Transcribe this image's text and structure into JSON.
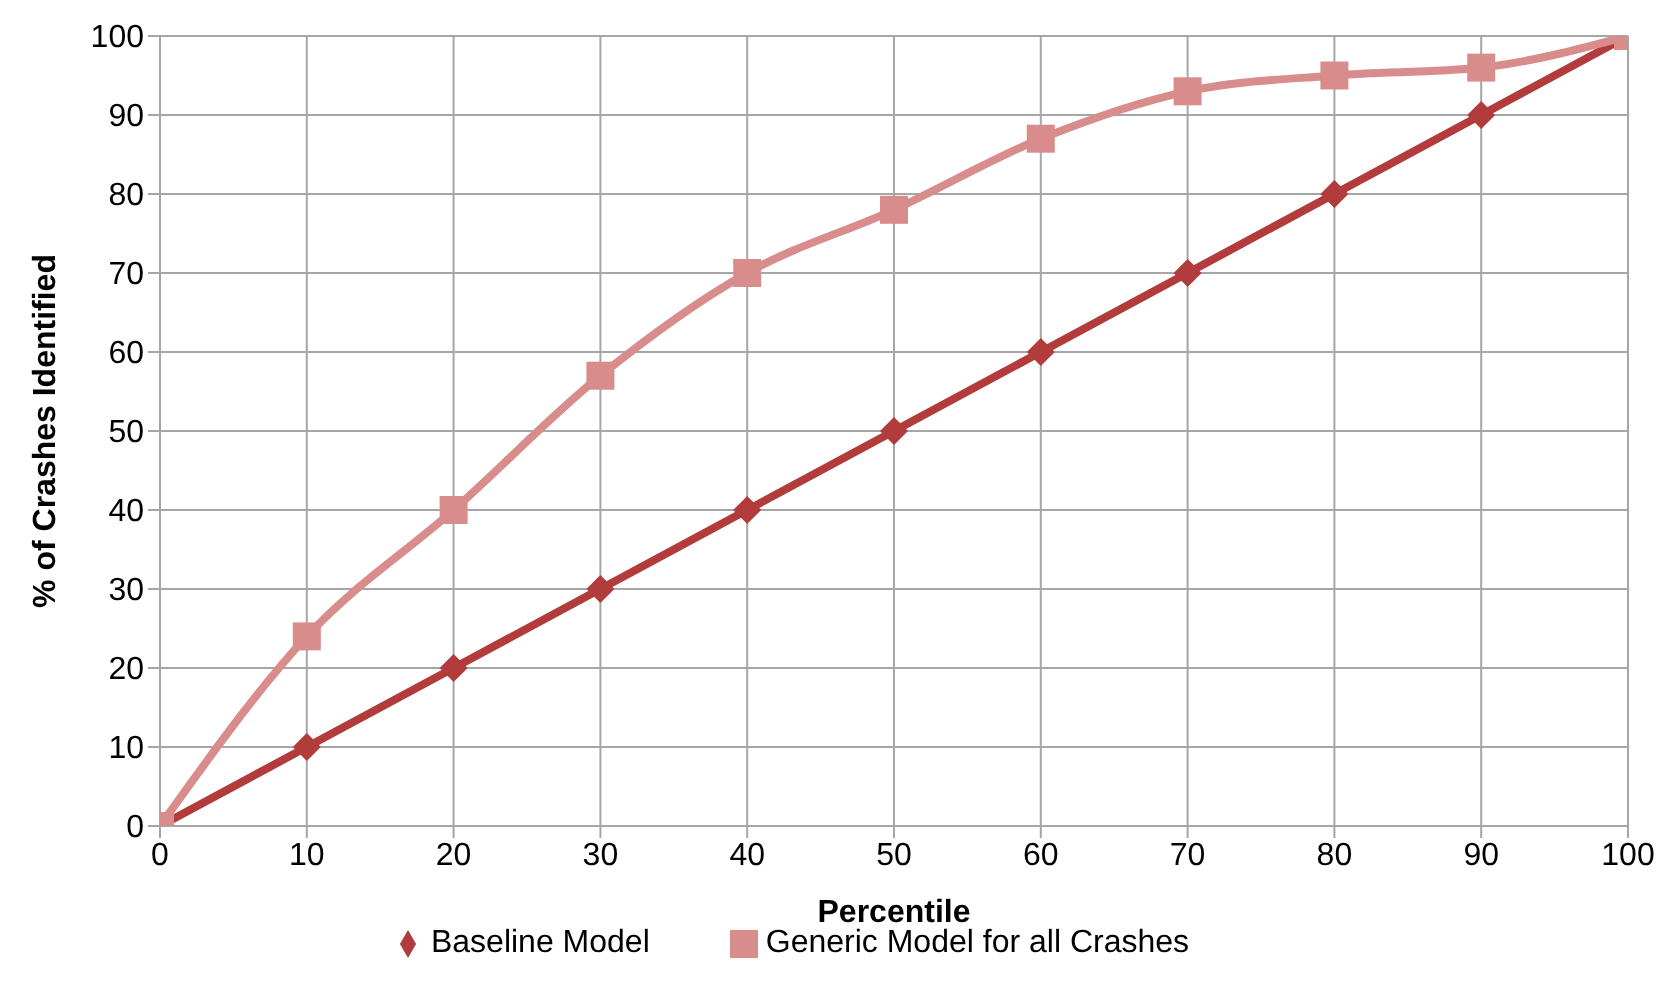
{
  "chart_data": {
    "type": "line",
    "xlabel": "Percentile",
    "ylabel": "% of Crashes Identified",
    "x": [
      0,
      10,
      20,
      30,
      40,
      50,
      60,
      70,
      80,
      90,
      100
    ],
    "series": [
      {
        "name": "Baseline Model",
        "color": "#b23c3c",
        "marker": "diamond",
        "values": [
          0,
          10,
          20,
          30,
          40,
          50,
          60,
          70,
          80,
          90,
          100
        ]
      },
      {
        "name": "Generic Model for all Crashes",
        "color": "#d98c8c",
        "marker": "square",
        "values": [
          0,
          24,
          40,
          57,
          70,
          78,
          87,
          93,
          95,
          96,
          100
        ]
      }
    ],
    "xlim": [
      0,
      100
    ],
    "xticks": [
      0,
      10,
      20,
      30,
      40,
      50,
      60,
      70,
      80,
      90,
      100
    ],
    "ylim": [
      0,
      100
    ],
    "yticks": [
      0,
      10,
      20,
      30,
      40,
      50,
      60,
      70,
      80,
      90,
      100
    ],
    "grid": true,
    "legend": "bottom"
  }
}
